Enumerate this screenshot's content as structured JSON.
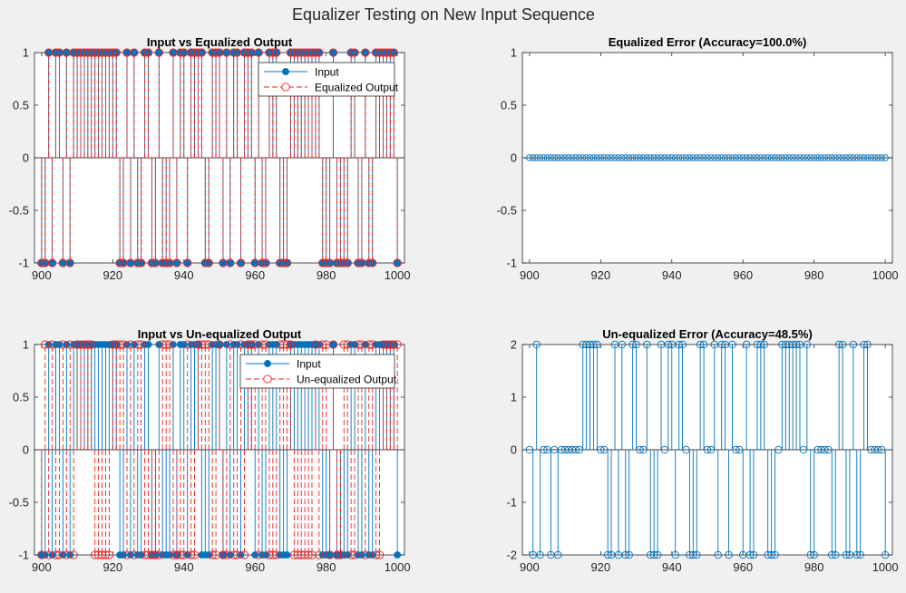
{
  "figure": {
    "title": "Equalizer Testing on New Input Sequence"
  },
  "chart_data": [
    {
      "type": "stem",
      "title": "Input vs Equalized Output",
      "xlabel": "",
      "ylabel": "",
      "xlim": [
        898,
        1002
      ],
      "ylim": [
        -1,
        1
      ],
      "xticks": [
        900,
        920,
        940,
        960,
        980,
        1000
      ],
      "yticks": [
        -1,
        -0.5,
        0,
        0.5,
        1
      ],
      "grid": false,
      "legend_position": "top-right",
      "x": [
        900,
        901,
        902,
        903,
        904,
        905,
        906,
        907,
        908,
        909,
        910,
        911,
        912,
        913,
        914,
        915,
        916,
        917,
        918,
        919,
        920,
        921,
        922,
        923,
        924,
        925,
        926,
        927,
        928,
        929,
        930,
        931,
        932,
        933,
        934,
        935,
        936,
        937,
        938,
        939,
        940,
        941,
        942,
        943,
        944,
        945,
        946,
        947,
        948,
        949,
        950,
        951,
        952,
        953,
        954,
        955,
        956,
        957,
        958,
        959,
        960,
        961,
        962,
        963,
        964,
        965,
        966,
        967,
        968,
        969,
        970,
        971,
        972,
        973,
        974,
        975,
        976,
        977,
        978,
        979,
        980,
        981,
        982,
        983,
        984,
        985,
        986,
        987,
        988,
        989,
        990,
        991,
        992,
        993,
        994,
        995,
        996,
        997,
        998,
        999,
        1000
      ],
      "series": [
        {
          "name": "Input",
          "values": [
            -1,
            -1,
            1,
            -1,
            1,
            1,
            -1,
            1,
            -1,
            1,
            1,
            1,
            1,
            1,
            1,
            1,
            1,
            1,
            1,
            1,
            1,
            1,
            -1,
            -1,
            1,
            -1,
            1,
            -1,
            -1,
            1,
            1,
            -1,
            -1,
            1,
            -1,
            -1,
            -1,
            1,
            -1,
            1,
            1,
            -1,
            1,
            1,
            1,
            1,
            -1,
            -1,
            1,
            1,
            1,
            -1,
            1,
            -1,
            1,
            1,
            -1,
            1,
            1,
            1,
            -1,
            1,
            -1,
            -1,
            1,
            1,
            1,
            -1,
            -1,
            -1,
            1,
            1,
            1,
            1,
            1,
            1,
            1,
            1,
            1,
            -1,
            -1,
            -1,
            1,
            -1,
            -1,
            -1,
            -1,
            1,
            1,
            -1,
            -1,
            1,
            -1,
            -1,
            1,
            1,
            1,
            1,
            1,
            1,
            -1
          ]
        },
        {
          "name": "Equalized Output",
          "values": [
            -1,
            -1,
            1,
            -1,
            1,
            1,
            -1,
            1,
            -1,
            1,
            1,
            1,
            1,
            1,
            1,
            1,
            1,
            1,
            1,
            1,
            1,
            1,
            -1,
            -1,
            1,
            -1,
            1,
            -1,
            -1,
            1,
            1,
            -1,
            -1,
            1,
            -1,
            -1,
            -1,
            1,
            -1,
            1,
            1,
            -1,
            1,
            1,
            1,
            1,
            -1,
            -1,
            1,
            1,
            1,
            -1,
            1,
            -1,
            1,
            1,
            -1,
            1,
            1,
            1,
            -1,
            1,
            -1,
            -1,
            1,
            1,
            1,
            -1,
            -1,
            -1,
            1,
            1,
            1,
            1,
            1,
            1,
            1,
            1,
            1,
            -1,
            -1,
            -1,
            1,
            -1,
            -1,
            -1,
            -1,
            1,
            1,
            -1,
            -1,
            1,
            -1,
            -1,
            1,
            1,
            1,
            1,
            1,
            1,
            -1
          ]
        }
      ]
    },
    {
      "type": "stem",
      "title": "Equalized Error (Accuracy=100.0%)",
      "xlabel": "",
      "ylabel": "",
      "xlim": [
        898,
        1002
      ],
      "ylim": [
        -1,
        1
      ],
      "xticks": [
        900,
        920,
        940,
        960,
        980,
        1000
      ],
      "yticks": [
        -1,
        -0.5,
        0,
        0.5,
        1
      ],
      "grid": false,
      "x": [
        900,
        901,
        902,
        903,
        904,
        905,
        906,
        907,
        908,
        909,
        910,
        911,
        912,
        913,
        914,
        915,
        916,
        917,
        918,
        919,
        920,
        921,
        922,
        923,
        924,
        925,
        926,
        927,
        928,
        929,
        930,
        931,
        932,
        933,
        934,
        935,
        936,
        937,
        938,
        939,
        940,
        941,
        942,
        943,
        944,
        945,
        946,
        947,
        948,
        949,
        950,
        951,
        952,
        953,
        954,
        955,
        956,
        957,
        958,
        959,
        960,
        961,
        962,
        963,
        964,
        965,
        966,
        967,
        968,
        969,
        970,
        971,
        972,
        973,
        974,
        975,
        976,
        977,
        978,
        979,
        980,
        981,
        982,
        983,
        984,
        985,
        986,
        987,
        988,
        989,
        990,
        991,
        992,
        993,
        994,
        995,
        996,
        997,
        998,
        999,
        1000
      ],
      "series": [
        {
          "values": [
            0,
            0,
            0,
            0,
            0,
            0,
            0,
            0,
            0,
            0,
            0,
            0,
            0,
            0,
            0,
            0,
            0,
            0,
            0,
            0,
            0,
            0,
            0,
            0,
            0,
            0,
            0,
            0,
            0,
            0,
            0,
            0,
            0,
            0,
            0,
            0,
            0,
            0,
            0,
            0,
            0,
            0,
            0,
            0,
            0,
            0,
            0,
            0,
            0,
            0,
            0,
            0,
            0,
            0,
            0,
            0,
            0,
            0,
            0,
            0,
            0,
            0,
            0,
            0,
            0,
            0,
            0,
            0,
            0,
            0,
            0,
            0,
            0,
            0,
            0,
            0,
            0,
            0,
            0,
            0,
            0,
            0,
            0,
            0,
            0,
            0,
            0,
            0,
            0,
            0,
            0,
            0,
            0,
            0,
            0,
            0,
            0,
            0,
            0,
            0,
            0
          ]
        }
      ]
    },
    {
      "type": "stem",
      "title": "Input vs Un-equalized Output",
      "xlabel": "",
      "ylabel": "",
      "xlim": [
        898,
        1002
      ],
      "ylim": [
        -1,
        1
      ],
      "xticks": [
        900,
        920,
        940,
        960,
        980,
        1000
      ],
      "yticks": [
        -1,
        -0.5,
        0,
        0.5,
        1
      ],
      "grid": false,
      "legend_position": "top-right",
      "x": [
        900,
        901,
        902,
        903,
        904,
        905,
        906,
        907,
        908,
        909,
        910,
        911,
        912,
        913,
        914,
        915,
        916,
        917,
        918,
        919,
        920,
        921,
        922,
        923,
        924,
        925,
        926,
        927,
        928,
        929,
        930,
        931,
        932,
        933,
        934,
        935,
        936,
        937,
        938,
        939,
        940,
        941,
        942,
        943,
        944,
        945,
        946,
        947,
        948,
        949,
        950,
        951,
        952,
        953,
        954,
        955,
        956,
        957,
        958,
        959,
        960,
        961,
        962,
        963,
        964,
        965,
        966,
        967,
        968,
        969,
        970,
        971,
        972,
        973,
        974,
        975,
        976,
        977,
        978,
        979,
        980,
        981,
        982,
        983,
        984,
        985,
        986,
        987,
        988,
        989,
        990,
        991,
        992,
        993,
        994,
        995,
        996,
        997,
        998,
        999,
        1000
      ],
      "series": [
        {
          "name": "Input",
          "values": [
            -1,
            -1,
            1,
            -1,
            1,
            1,
            -1,
            1,
            -1,
            1,
            1,
            1,
            1,
            1,
            1,
            1,
            1,
            1,
            1,
            1,
            1,
            1,
            -1,
            -1,
            1,
            -1,
            1,
            -1,
            -1,
            1,
            1,
            -1,
            -1,
            1,
            -1,
            -1,
            -1,
            1,
            -1,
            1,
            1,
            -1,
            1,
            1,
            1,
            -1,
            -1,
            -1,
            1,
            1,
            1,
            -1,
            1,
            -1,
            1,
            1,
            -1,
            1,
            1,
            1,
            -1,
            1,
            -1,
            -1,
            1,
            1,
            1,
            -1,
            -1,
            -1,
            1,
            1,
            1,
            1,
            1,
            1,
            1,
            1,
            1,
            -1,
            -1,
            -1,
            1,
            -1,
            -1,
            -1,
            -1,
            1,
            1,
            -1,
            -1,
            1,
            -1,
            -1,
            1,
            1,
            1,
            1,
            1,
            1,
            -1
          ]
        },
        {
          "name": "Un-equalized Output",
          "values": [
            -1,
            1,
            -1,
            1,
            -1,
            -1,
            1,
            -1,
            1,
            -1,
            1,
            1,
            1,
            1,
            1,
            -1,
            -1,
            -1,
            -1,
            -1,
            1,
            1,
            1,
            1,
            -1,
            1,
            -1,
            1,
            1,
            -1,
            -1,
            -1,
            -1,
            -1,
            1,
            1,
            1,
            -1,
            -1,
            -1,
            -1,
            1,
            -1,
            -1,
            1,
            1,
            1,
            1,
            -1,
            -1,
            1,
            -1,
            -1,
            1,
            -1,
            -1,
            1,
            -1,
            1,
            1,
            1,
            -1,
            1,
            1,
            -1,
            -1,
            -1,
            1,
            1,
            1,
            1,
            -1,
            -1,
            -1,
            -1,
            -1,
            -1,
            1,
            -1,
            1,
            1,
            -1,
            1,
            -1,
            -1,
            1,
            1,
            -1,
            -1,
            1,
            1,
            -1,
            1,
            1,
            -1,
            -1,
            1,
            1,
            1,
            1,
            1
          ]
        }
      ]
    },
    {
      "type": "stem",
      "title": "Un-equalized Error (Accuracy=48.5%)",
      "xlabel": "",
      "ylabel": "",
      "xlim": [
        898,
        1002
      ],
      "ylim": [
        -2,
        2
      ],
      "xticks": [
        900,
        920,
        940,
        960,
        980,
        1000
      ],
      "yticks": [
        -2,
        -1,
        0,
        1,
        2
      ],
      "grid": false,
      "x": [
        900,
        901,
        902,
        903,
        904,
        905,
        906,
        907,
        908,
        909,
        910,
        911,
        912,
        913,
        914,
        915,
        916,
        917,
        918,
        919,
        920,
        921,
        922,
        923,
        924,
        925,
        926,
        927,
        928,
        929,
        930,
        931,
        932,
        933,
        934,
        935,
        936,
        937,
        938,
        939,
        940,
        941,
        942,
        943,
        944,
        945,
        946,
        947,
        948,
        949,
        950,
        951,
        952,
        953,
        954,
        955,
        956,
        957,
        958,
        959,
        960,
        961,
        962,
        963,
        964,
        965,
        966,
        967,
        968,
        969,
        970,
        971,
        972,
        973,
        974,
        975,
        976,
        977,
        978,
        979,
        980,
        981,
        982,
        983,
        984,
        985,
        986,
        987,
        988,
        989,
        990,
        991,
        992,
        993,
        994,
        995,
        996,
        997,
        998,
        999,
        1000
      ],
      "series": [
        {
          "values": [
            0,
            -2,
            2,
            -2,
            0,
            0,
            -2,
            0,
            -2,
            0,
            0,
            0,
            0,
            0,
            0,
            2,
            2,
            2,
            2,
            2,
            0,
            0,
            -2,
            -2,
            2,
            -2,
            2,
            -2,
            -2,
            2,
            2,
            0,
            0,
            2,
            -2,
            -2,
            -2,
            2,
            0,
            2,
            2,
            -2,
            2,
            2,
            0,
            -2,
            -2,
            -2,
            2,
            2,
            0,
            0,
            2,
            -2,
            2,
            2,
            -2,
            2,
            0,
            0,
            -2,
            2,
            -2,
            -2,
            2,
            2,
            2,
            -2,
            -2,
            -2,
            0,
            2,
            2,
            2,
            2,
            2,
            2,
            0,
            2,
            -2,
            -2,
            0,
            0,
            0,
            0,
            -2,
            -2,
            2,
            2,
            -2,
            -2,
            2,
            -2,
            -2,
            2,
            2,
            0,
            0,
            0,
            0,
            -2
          ]
        }
      ]
    }
  ]
}
